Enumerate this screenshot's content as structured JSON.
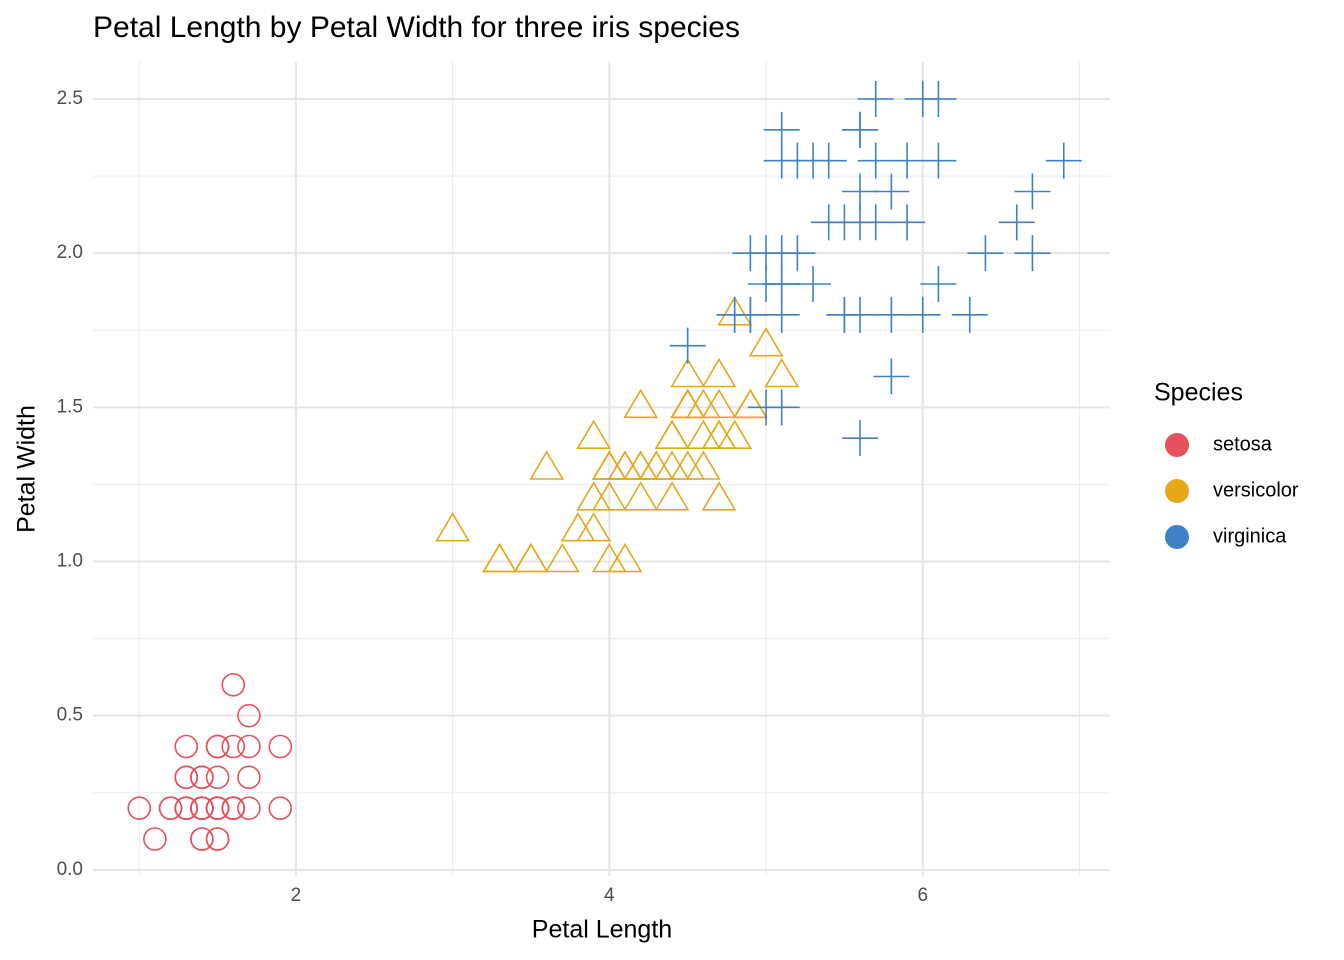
{
  "chart_data": {
    "type": "scatter",
    "title": "Petal Length by Petal Width for three iris species",
    "x_label": "Petal Length",
    "y_label": "Petal Width",
    "legend_title": "Species",
    "legend_position": "right",
    "grid": true,
    "xlim": [
      0.705,
      7.195
    ],
    "ylim": [
      -0.02,
      2.62
    ],
    "xticks": [
      2,
      4,
      6
    ],
    "yticks": [
      {
        "value": 0,
        "label": "0.0"
      },
      0.5,
      {
        "value": 1,
        "label": "1.0"
      },
      1.5,
      {
        "value": 2,
        "label": "2.0"
      },
      2.5
    ],
    "x_minor_grid": [
      1,
      3,
      5,
      7
    ],
    "y_minor_grid": [
      0.25,
      0.75,
      1.25,
      1.75,
      2.25
    ],
    "series": [
      {
        "name": "setosa",
        "color": "#E8505B",
        "marker": "circle",
        "x": [
          1.4,
          1.4,
          1.3,
          1.5,
          1.4,
          1.7,
          1.4,
          1.5,
          1.4,
          1.5,
          1.5,
          1.6,
          1.4,
          1.1,
          1.2,
          1.5,
          1.3,
          1.4,
          1.7,
          1.5,
          1.7,
          1.5,
          1.0,
          1.7,
          1.9,
          1.6,
          1.6,
          1.5,
          1.4,
          1.6,
          1.6,
          1.5,
          1.5,
          1.4,
          1.5,
          1.2,
          1.3,
          1.4,
          1.3,
          1.5,
          1.3,
          1.3,
          1.3,
          1.6,
          1.9,
          1.4,
          1.6,
          1.4,
          1.5,
          1.4
        ],
        "y": [
          0.2,
          0.2,
          0.2,
          0.2,
          0.2,
          0.4,
          0.3,
          0.2,
          0.2,
          0.1,
          0.2,
          0.2,
          0.1,
          0.1,
          0.2,
          0.4,
          0.4,
          0.3,
          0.3,
          0.3,
          0.2,
          0.4,
          0.2,
          0.5,
          0.2,
          0.2,
          0.4,
          0.2,
          0.2,
          0.2,
          0.2,
          0.4,
          0.1,
          0.2,
          0.2,
          0.2,
          0.2,
          0.1,
          0.2,
          0.2,
          0.3,
          0.3,
          0.2,
          0.6,
          0.4,
          0.3,
          0.2,
          0.2,
          0.2,
          0.2
        ]
      },
      {
        "name": "versicolor",
        "color": "#E6A819",
        "marker": "triangle",
        "x": [
          4.7,
          4.5,
          4.9,
          4.0,
          4.6,
          4.5,
          4.7,
          3.3,
          4.6,
          3.9,
          3.5,
          4.2,
          4.0,
          4.7,
          3.6,
          4.4,
          4.5,
          4.1,
          4.5,
          3.9,
          4.8,
          4.0,
          4.9,
          4.7,
          4.3,
          4.4,
          4.8,
          5.0,
          4.5,
          3.5,
          3.8,
          3.7,
          3.9,
          5.1,
          4.5,
          4.5,
          4.7,
          4.4,
          4.1,
          4.0,
          4.4,
          4.6,
          4.0,
          3.3,
          4.2,
          4.2,
          4.2,
          4.3,
          3.0,
          4.1
        ],
        "y": [
          1.4,
          1.5,
          1.5,
          1.3,
          1.5,
          1.3,
          1.6,
          1.0,
          1.3,
          1.4,
          1.0,
          1.5,
          1.0,
          1.4,
          1.3,
          1.4,
          1.5,
          1.0,
          1.5,
          1.1,
          1.8,
          1.3,
          1.5,
          1.2,
          1.3,
          1.4,
          1.4,
          1.7,
          1.5,
          1.0,
          1.1,
          1.0,
          1.2,
          1.6,
          1.5,
          1.6,
          1.5,
          1.3,
          1.3,
          1.3,
          1.2,
          1.4,
          1.2,
          1.0,
          1.3,
          1.2,
          1.3,
          1.3,
          1.1,
          1.3
        ]
      },
      {
        "name": "virginica",
        "color": "#3F80C6",
        "marker": "plus",
        "x": [
          6.0,
          5.1,
          5.9,
          5.6,
          5.8,
          6.6,
          4.5,
          6.3,
          5.8,
          6.1,
          5.1,
          5.3,
          5.5,
          5.0,
          5.1,
          5.3,
          5.5,
          6.7,
          6.9,
          5.0,
          5.7,
          4.9,
          6.7,
          4.9,
          5.7,
          6.0,
          4.8,
          4.9,
          5.6,
          5.8,
          6.1,
          6.4,
          5.6,
          5.1,
          5.6,
          6.1,
          5.6,
          5.5,
          4.8,
          5.4,
          5.6,
          5.1,
          5.1,
          5.9,
          5.7,
          5.2,
          5.0,
          5.2,
          5.4,
          5.1
        ],
        "y": [
          2.5,
          1.9,
          2.1,
          1.8,
          2.2,
          2.1,
          1.7,
          1.8,
          1.8,
          2.5,
          2.0,
          1.9,
          2.1,
          2.0,
          2.4,
          2.3,
          1.8,
          2.2,
          2.3,
          1.5,
          2.3,
          2.0,
          2.0,
          1.8,
          2.1,
          1.8,
          1.8,
          1.8,
          2.1,
          1.6,
          1.9,
          2.0,
          2.2,
          1.5,
          1.4,
          2.3,
          2.4,
          1.8,
          1.8,
          2.1,
          2.4,
          2.3,
          1.9,
          2.3,
          2.5,
          2.3,
          1.9,
          2.0,
          2.3,
          1.8
        ]
      }
    ]
  }
}
